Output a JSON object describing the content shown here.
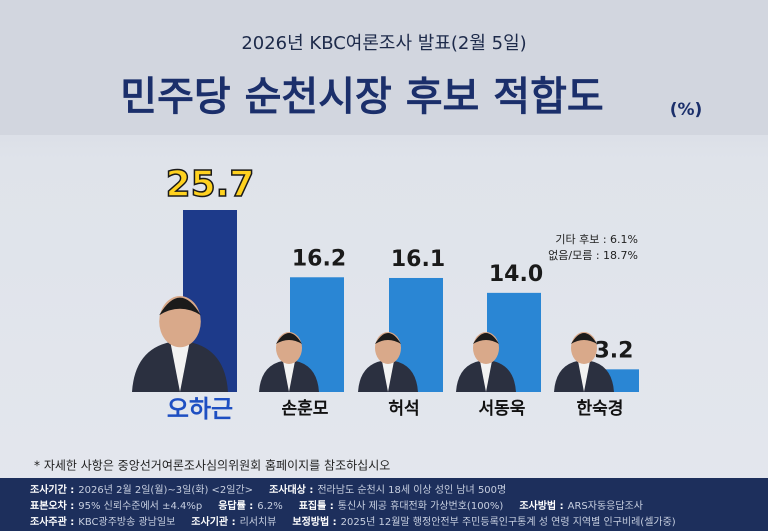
{
  "chart_data": {
    "type": "bar",
    "subtitle": "2026년 KBC여론조사 발표(2월 5일)",
    "title": "민주당 순천시장 후보 적합도",
    "unit": "(%)",
    "categories": [
      "오하근",
      "손훈모",
      "허석",
      "서동욱",
      "한숙경"
    ],
    "values": [
      25.7,
      16.2,
      16.1,
      14.0,
      3.2
    ],
    "value_labels": [
      "25.7",
      "16.2",
      "16.1",
      "14.0",
      "3.2"
    ],
    "colors": [
      "#1d3a8a",
      "#2a86d4",
      "#2a86d4",
      "#2a86d4",
      "#2a86d4"
    ],
    "annotations": [
      "기타 후보 : 6.1%",
      "없음/모름 : 18.7%"
    ],
    "footnote": "* 자세한 사항은 중앙선거여론조사심의위원회 홈페이지를 참조하십시오",
    "footer": [
      [
        {
          "label": "조사기간 :",
          "value": "2026년 2월 2일(월)~3일(화) <2일간>"
        },
        {
          "label": "조사대상 :",
          "value": "전라남도 순천시 18세 이상 성인 남녀 500명"
        }
      ],
      [
        {
          "label": "표본오차 :",
          "value": "95% 신뢰수준에서 ±4.4%p"
        },
        {
          "label": "응답률 :",
          "value": "6.2%"
        },
        {
          "label": "표집틀 :",
          "value": "통신사 제공 휴대전화 가상번호(100%)"
        },
        {
          "label": "조사방법 :",
          "value": "ARS자동응답조사"
        }
      ],
      [
        {
          "label": "조사주관 :",
          "value": "KBC광주방송 광남일보"
        },
        {
          "label": "조사기관 :",
          "value": "리서치뷰"
        },
        {
          "label": "보정방법 :",
          "value": "2025년 12월말 행정안전부 주민등록인구통계 성 연령 지역별 인구비례(셀가중)"
        }
      ]
    ]
  }
}
